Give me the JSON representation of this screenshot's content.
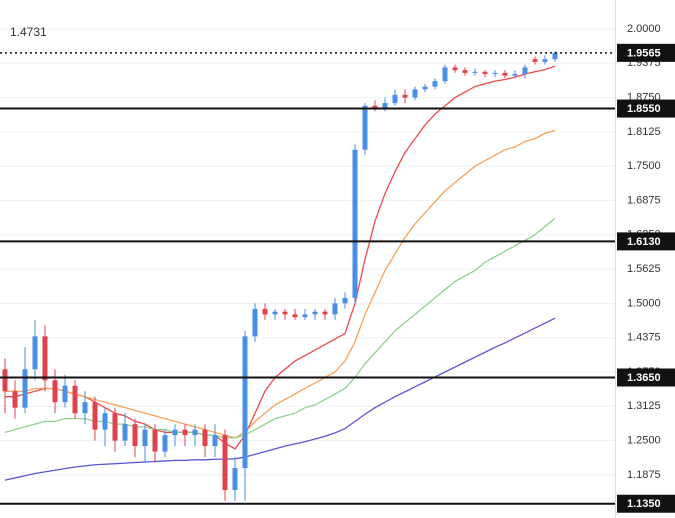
{
  "chart_data": {
    "type": "candlestick",
    "annotation": "1.4731",
    "ylim": [
      1.109,
      2.0528
    ],
    "yticks": [
      {
        "value": 2.0,
        "label": "2.0000"
      },
      {
        "value": 1.9375,
        "label": "1.9375"
      },
      {
        "value": 1.875,
        "label": "1.8750"
      },
      {
        "value": 1.8125,
        "label": "1.8125"
      },
      {
        "value": 1.75,
        "label": "1.7500"
      },
      {
        "value": 1.6875,
        "label": "1.6875"
      },
      {
        "value": 1.625,
        "label": "1.6250"
      },
      {
        "value": 1.5625,
        "label": "1.5625"
      },
      {
        "value": 1.5,
        "label": "1.5000"
      },
      {
        "value": 1.4375,
        "label": "1.4375"
      },
      {
        "value": 1.375,
        "label": "1.3750"
      },
      {
        "value": 1.3125,
        "label": "1.3125"
      },
      {
        "value": 1.25,
        "label": "1.2500"
      },
      {
        "value": 1.1875,
        "label": "1.1875"
      }
    ],
    "grid": true,
    "up_color": "#4a8fe6",
    "down_color": "#e0414f",
    "candles": {
      "open": [
        1.38,
        1.34,
        1.31,
        1.38,
        1.44,
        1.36,
        1.32,
        1.35,
        1.3,
        1.32,
        1.27,
        1.3,
        1.25,
        1.28,
        1.24,
        1.27,
        1.23,
        1.26,
        1.27,
        1.26,
        1.27,
        1.24,
        1.26,
        1.16,
        1.2,
        1.44,
        1.49,
        1.48,
        1.485,
        1.48,
        1.475,
        1.48,
        1.485,
        1.48,
        1.5,
        1.51,
        1.78,
        1.86,
        1.855,
        1.865,
        1.88,
        1.875,
        1.89,
        1.895,
        1.905,
        1.93,
        1.925,
        1.92,
        1.922,
        1.918,
        1.92,
        1.915,
        1.918,
        1.945,
        1.94,
        1.945
      ],
      "high": [
        1.4,
        1.36,
        1.42,
        1.47,
        1.46,
        1.38,
        1.37,
        1.36,
        1.34,
        1.33,
        1.31,
        1.31,
        1.3,
        1.29,
        1.28,
        1.28,
        1.27,
        1.28,
        1.28,
        1.28,
        1.28,
        1.28,
        1.27,
        1.22,
        1.45,
        1.5,
        1.5,
        1.49,
        1.49,
        1.49,
        1.49,
        1.49,
        1.49,
        1.51,
        1.52,
        1.79,
        1.865,
        1.87,
        1.875,
        1.89,
        1.89,
        1.895,
        1.9,
        1.91,
        1.935,
        1.935,
        1.93,
        1.928,
        1.925,
        1.925,
        1.925,
        1.925,
        1.935,
        1.95,
        1.952,
        1.96
      ],
      "low": [
        1.3,
        1.29,
        1.3,
        1.36,
        1.34,
        1.3,
        1.31,
        1.29,
        1.28,
        1.25,
        1.24,
        1.23,
        1.24,
        1.22,
        1.21,
        1.21,
        1.22,
        1.24,
        1.24,
        1.24,
        1.22,
        1.22,
        1.14,
        1.14,
        1.14,
        1.43,
        1.47,
        1.47,
        1.47,
        1.47,
        1.47,
        1.47,
        1.47,
        1.47,
        1.49,
        1.5,
        1.77,
        1.85,
        1.85,
        1.86,
        1.865,
        1.87,
        1.885,
        1.89,
        1.9,
        1.92,
        1.915,
        1.915,
        1.912,
        1.912,
        1.91,
        1.91,
        1.91,
        1.935,
        1.935,
        1.94
      ],
      "close": [
        1.34,
        1.31,
        1.38,
        1.44,
        1.36,
        1.32,
        1.35,
        1.3,
        1.32,
        1.27,
        1.3,
        1.25,
        1.28,
        1.24,
        1.27,
        1.23,
        1.26,
        1.27,
        1.26,
        1.27,
        1.24,
        1.26,
        1.16,
        1.2,
        1.44,
        1.49,
        1.48,
        1.485,
        1.48,
        1.475,
        1.48,
        1.485,
        1.48,
        1.5,
        1.51,
        1.78,
        1.86,
        1.855,
        1.865,
        1.88,
        1.875,
        1.89,
        1.895,
        1.905,
        1.93,
        1.925,
        1.92,
        1.922,
        1.918,
        1.92,
        1.915,
        1.918,
        1.93,
        1.94,
        1.945,
        1.9565
      ]
    },
    "series": [
      {
        "color": "#ec4a4a",
        "values": [
          1.33,
          1.33,
          1.335,
          1.34,
          1.345,
          1.345,
          1.34,
          1.335,
          1.33,
          1.32,
          1.31,
          1.3,
          1.295,
          1.285,
          1.28,
          1.27,
          1.265,
          1.265,
          1.265,
          1.265,
          1.26,
          1.26,
          1.245,
          1.235,
          1.26,
          1.3,
          1.34,
          1.365,
          1.38,
          1.395,
          1.405,
          1.415,
          1.425,
          1.435,
          1.445,
          1.5,
          1.58,
          1.65,
          1.7,
          1.74,
          1.775,
          1.8,
          1.825,
          1.845,
          1.86,
          1.875,
          1.885,
          1.895,
          1.9,
          1.905,
          1.908,
          1.912,
          1.918,
          1.922,
          1.926,
          1.932
        ]
      },
      {
        "color": "#f6a35a",
        "values": [
          1.34,
          1.34,
          1.34,
          1.345,
          1.345,
          1.345,
          1.34,
          1.335,
          1.33,
          1.325,
          1.32,
          1.315,
          1.31,
          1.305,
          1.3,
          1.295,
          1.29,
          1.285,
          1.28,
          1.275,
          1.27,
          1.265,
          1.26,
          1.255,
          1.265,
          1.285,
          1.3,
          1.315,
          1.325,
          1.335,
          1.345,
          1.355,
          1.365,
          1.375,
          1.395,
          1.43,
          1.48,
          1.52,
          1.56,
          1.59,
          1.62,
          1.645,
          1.665,
          1.685,
          1.705,
          1.72,
          1.735,
          1.75,
          1.76,
          1.77,
          1.78,
          1.785,
          1.795,
          1.8,
          1.81,
          1.815
        ]
      },
      {
        "color": "#8fd18f",
        "values": [
          1.265,
          1.27,
          1.275,
          1.28,
          1.285,
          1.285,
          1.29,
          1.29,
          1.29,
          1.285,
          1.285,
          1.28,
          1.28,
          1.275,
          1.275,
          1.27,
          1.27,
          1.265,
          1.265,
          1.265,
          1.26,
          1.26,
          1.255,
          1.255,
          1.26,
          1.27,
          1.28,
          1.29,
          1.295,
          1.3,
          1.31,
          1.315,
          1.325,
          1.335,
          1.345,
          1.365,
          1.39,
          1.41,
          1.43,
          1.45,
          1.465,
          1.48,
          1.495,
          1.51,
          1.525,
          1.54,
          1.55,
          1.56,
          1.575,
          1.585,
          1.595,
          1.605,
          1.615,
          1.625,
          1.64,
          1.655
        ]
      },
      {
        "color": "#5a55d6",
        "values": [
          1.178,
          1.182,
          1.186,
          1.19,
          1.193,
          1.196,
          1.199,
          1.202,
          1.204,
          1.206,
          1.207,
          1.208,
          1.209,
          1.21,
          1.211,
          1.212,
          1.213,
          1.214,
          1.214,
          1.215,
          1.215,
          1.216,
          1.216,
          1.217,
          1.22,
          1.225,
          1.23,
          1.235,
          1.24,
          1.244,
          1.248,
          1.253,
          1.258,
          1.264,
          1.272,
          1.285,
          1.298,
          1.31,
          1.32,
          1.33,
          1.339,
          1.348,
          1.357,
          1.366,
          1.375,
          1.384,
          1.393,
          1.402,
          1.411,
          1.42,
          1.428,
          1.437,
          1.446,
          1.455,
          1.464,
          1.4731
        ]
      }
    ],
    "levels": [
      {
        "value": 1.9565,
        "label": "1.9565",
        "style": "dotted"
      },
      {
        "value": 1.855,
        "label": "1.8550",
        "style": "solid"
      },
      {
        "value": 1.613,
        "label": "1.6130",
        "style": "solid"
      },
      {
        "value": 1.365,
        "label": "1.3650",
        "style": "solid"
      },
      {
        "value": 1.135,
        "label": "1.1350",
        "style": "solid"
      }
    ]
  }
}
